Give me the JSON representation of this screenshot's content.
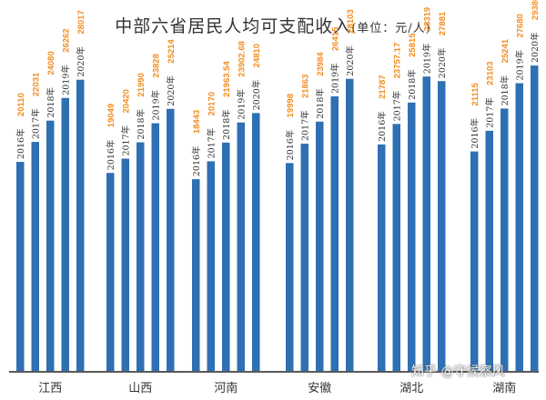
{
  "chart_data": {
    "type": "bar",
    "title": "中部六省居民人均可支配收入",
    "unit": "(单位：元/人)",
    "categories": [
      "江西",
      "山西",
      "河南",
      "安徽",
      "湖北",
      "湖南"
    ],
    "series_labels": [
      "2016年",
      "2017年",
      "2018年",
      "2019年",
      "2020年"
    ],
    "data_labels": [
      [
        "20110",
        "22031",
        "24080",
        "26262",
        "28017"
      ],
      [
        "19049",
        "20420",
        "21990",
        "23828",
        "25214"
      ],
      [
        "18443",
        "20170",
        "21963.54",
        "23902.68",
        "24810"
      ],
      [
        "19998",
        "21863",
        "23984",
        "26415",
        "28103"
      ],
      [
        "21787",
        "23757.17",
        "25815",
        "28319",
        "27881"
      ],
      [
        "21115",
        "23103",
        "25241",
        "27680",
        "29380"
      ]
    ],
    "values": [
      [
        20110,
        22031,
        24080,
        26262,
        28017
      ],
      [
        19049,
        20420,
        21990,
        23828,
        25214
      ],
      [
        18443,
        20170,
        21963.54,
        23902.68,
        24810
      ],
      [
        19998,
        21863,
        23984,
        26415,
        28103
      ],
      [
        21787,
        23757.17,
        25815,
        28319,
        27881
      ],
      [
        21115,
        23103,
        25241,
        27680,
        29380
      ]
    ],
    "ylim": [
      0,
      30000
    ],
    "grid": false,
    "colors": {
      "bar": "#2f6fb3",
      "value_label": "#f28c1f",
      "year_label": "#333333",
      "axis": "#222222"
    }
  },
  "watermark": "知乎 @守候察风"
}
